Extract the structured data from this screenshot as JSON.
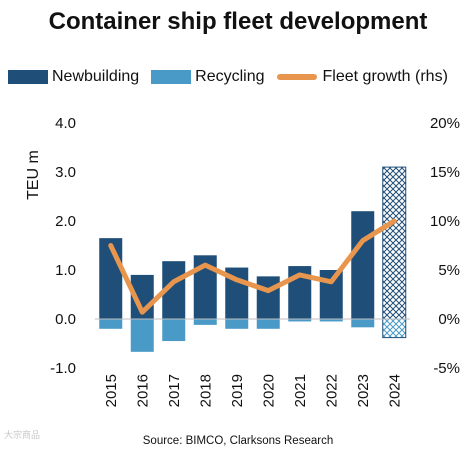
{
  "chart_data": {
    "type": "bar",
    "title": "Container ship fleet development",
    "source": "Source: BIMCO, Clarksons Research",
    "ylabel": "TEU m",
    "ylim": [
      -1.0,
      4.0
    ],
    "y_ticks": [
      "-1.0",
      "0.0",
      "1.0",
      "2.0",
      "3.0",
      "4.0"
    ],
    "y2lim": [
      -5,
      20
    ],
    "y2_ticks": [
      "-5%",
      "0%",
      "5%",
      "10%",
      "15%",
      "20%"
    ],
    "categories": [
      "2015",
      "2016",
      "2017",
      "2018",
      "2019",
      "2020",
      "2021",
      "2022",
      "2023",
      "2024"
    ],
    "forecast_categories": [
      "2024"
    ],
    "legend_position": "top",
    "series": [
      {
        "name": "Newbuilding",
        "type": "bar",
        "axis": "left",
        "color": "#1f4e79",
        "values": [
          1.65,
          0.9,
          1.18,
          1.3,
          1.05,
          0.87,
          1.08,
          1.0,
          2.2,
          3.1
        ]
      },
      {
        "name": "Recycling",
        "type": "bar",
        "axis": "left",
        "color": "#4a9ac7",
        "values": [
          -0.2,
          -0.67,
          -0.45,
          -0.12,
          -0.2,
          -0.2,
          -0.05,
          -0.05,
          -0.17,
          -0.38
        ]
      },
      {
        "name": "Fleet growth (rhs)",
        "type": "line",
        "axis": "right",
        "color": "#e8954d",
        "values": [
          7.5,
          0.7,
          3.8,
          5.5,
          4.0,
          2.9,
          4.5,
          3.8,
          8.0,
          10.0
        ]
      }
    ],
    "watermark": "大宗商品"
  }
}
